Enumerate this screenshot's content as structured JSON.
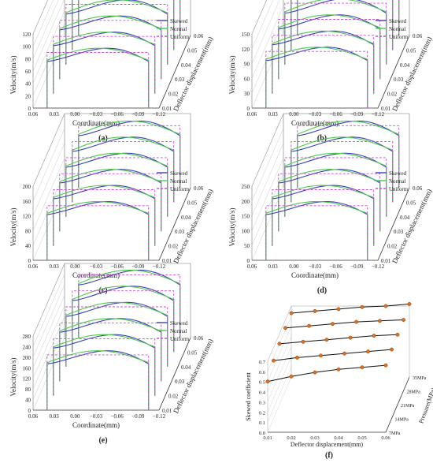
{
  "figure": {
    "panels": [
      {
        "label": "(a)",
        "chart_data": {
          "type": "line",
          "projection": "3d",
          "xlabel": "Coordinate(mm)",
          "ylabel": "Deflector displacement(mm)",
          "zlabel": "Velocity(m/s)",
          "x_ticks": [
            "0.06",
            "0.03",
            "0.00",
            "−0.03",
            "−0.06",
            "−0.09",
            "−0.12"
          ],
          "y_ticks": [
            "0.01",
            "0.02",
            "0.03",
            "0.04",
            "0.05",
            "0.06"
          ],
          "z_ticks": [
            "0",
            "20",
            "40",
            "60",
            "80",
            "100",
            "120"
          ],
          "zlim": [
            0,
            120
          ],
          "x_range": [
            0.06,
            -0.12
          ],
          "y_range": [
            0.01,
            0.06
          ],
          "slices": [
            0.01,
            0.02,
            0.03,
            0.04,
            0.05,
            0.06
          ],
          "peak_velocity": 110,
          "legend": {
            "placement": "top-right"
          },
          "series": [
            {
              "name": "Skewed",
              "color": "#3a3fb5",
              "dash": "solid"
            },
            {
              "name": "Normal",
              "color": "#4cc94c",
              "dash": "solid"
            },
            {
              "name": "Uniform",
              "color": "#c64fd6",
              "dash": "dashed"
            }
          ]
        }
      },
      {
        "label": "(b)",
        "chart_data": {
          "type": "line",
          "projection": "3d",
          "xlabel": "Coordinate(mm)",
          "ylabel": "Deflector displacement(mm)",
          "zlabel": "Velocity(m/s)",
          "x_ticks": [
            "0.06",
            "0.03",
            "0.00",
            "−0.03",
            "−0.06",
            "−0.09",
            "−0.12"
          ],
          "y_ticks": [
            "0.01",
            "0.02",
            "0.03",
            "0.04",
            "0.05",
            "0.06"
          ],
          "z_ticks": [
            "0",
            "30",
            "60",
            "90",
            "120",
            "150"
          ],
          "zlim": [
            0,
            150
          ],
          "x_range": [
            0.06,
            -0.12
          ],
          "y_range": [
            0.01,
            0.06
          ],
          "slices": [
            0.01,
            0.02,
            0.03,
            0.04,
            0.05,
            0.06
          ],
          "peak_velocity": 140,
          "legend": {
            "placement": "top-right"
          },
          "series": [
            {
              "name": "Skewed",
              "color": "#3a3fb5",
              "dash": "solid"
            },
            {
              "name": "Normal",
              "color": "#4cc94c",
              "dash": "solid"
            },
            {
              "name": "Uniform",
              "color": "#c64fd6",
              "dash": "dashed"
            }
          ]
        }
      },
      {
        "label": "(c)",
        "chart_data": {
          "type": "line",
          "projection": "3d",
          "xlabel": "Coordinate(mm)",
          "ylabel": "Deflector displacement(mm)",
          "zlabel": "Velocity(m/s)",
          "x_ticks": [
            "0.06",
            "0.03",
            "0.00",
            "−0.03",
            "−0.06",
            "−0.09",
            "−0.12"
          ],
          "y_ticks": [
            "0.01",
            "0.02",
            "0.03",
            "0.04",
            "0.05",
            "0.06"
          ],
          "z_ticks": [
            "0",
            "40",
            "80",
            "120",
            "160",
            "200"
          ],
          "zlim": [
            0,
            200
          ],
          "x_range": [
            0.06,
            -0.12
          ],
          "y_range": [
            0.01,
            0.06
          ],
          "slices": [
            0.01,
            0.02,
            0.03,
            0.04,
            0.05,
            0.06
          ],
          "peak_velocity": 180,
          "legend": {
            "placement": "top-right"
          },
          "series": [
            {
              "name": "Skewed",
              "color": "#3a3fb5",
              "dash": "solid"
            },
            {
              "name": "Normal",
              "color": "#4cc94c",
              "dash": "solid"
            },
            {
              "name": "Uniform",
              "color": "#c64fd6",
              "dash": "dashed"
            }
          ]
        }
      },
      {
        "label": "(d)",
        "chart_data": {
          "type": "line",
          "projection": "3d",
          "xlabel": "Coordinate(mm)",
          "ylabel": "Deflector displacement(mm)",
          "zlabel": "Velocity(m/s)",
          "x_ticks": [
            "0.06",
            "0.03",
            "0.00",
            "−0.03",
            "−0.06",
            "−0.09",
            "−0.12"
          ],
          "y_ticks": [
            "0.01",
            "0.02",
            "0.03",
            "0.04",
            "0.05",
            "0.06"
          ],
          "z_ticks": [
            "0",
            "50",
            "100",
            "150",
            "200",
            "250"
          ],
          "zlim": [
            0,
            250
          ],
          "x_range": [
            0.06,
            -0.12
          ],
          "y_range": [
            0.01,
            0.06
          ],
          "slices": [
            0.01,
            0.02,
            0.03,
            0.04,
            0.05,
            0.06
          ],
          "peak_velocity": 225,
          "legend": {
            "placement": "top-right"
          },
          "series": [
            {
              "name": "Skewed",
              "color": "#3a3fb5",
              "dash": "solid"
            },
            {
              "name": "Normal",
              "color": "#4cc94c",
              "dash": "solid"
            },
            {
              "name": "Uniform",
              "color": "#c64fd6",
              "dash": "dashed"
            }
          ]
        }
      },
      {
        "label": "(e)",
        "chart_data": {
          "type": "line",
          "projection": "3d",
          "xlabel": "Coordinate(mm)",
          "ylabel": "Deflector displacement(mm)",
          "zlabel": "Velocity(m/s)",
          "x_ticks": [
            "0.06",
            "0.03",
            "0.00",
            "−0.03",
            "−0.06",
            "−0.09",
            "−0.12"
          ],
          "y_ticks": [
            "0.01",
            "0.02",
            "0.03",
            "0.04",
            "0.05",
            "0.06"
          ],
          "z_ticks": [
            "0",
            "40",
            "80",
            "120",
            "160",
            "200",
            "240",
            "280"
          ],
          "zlim": [
            0,
            280
          ],
          "x_range": [
            0.06,
            -0.12
          ],
          "y_range": [
            0.01,
            0.06
          ],
          "slices": [
            0.01,
            0.02,
            0.03,
            0.04,
            0.05,
            0.06
          ],
          "peak_velocity": 255,
          "legend": {
            "placement": "top-right"
          },
          "series": [
            {
              "name": "Skewed",
              "color": "#3a3fb5",
              "dash": "solid"
            },
            {
              "name": "Normal",
              "color": "#4cc94c",
              "dash": "solid"
            },
            {
              "name": "Uniform",
              "color": "#c64fd6",
              "dash": "dashed"
            }
          ]
        }
      }
    ],
    "summary_panel": {
      "label": "(f)",
      "chart_data": {
        "type": "line",
        "projection": "3d",
        "xlabel": "Deflector displacement(mm)",
        "ylabel": "Pressure(MPa)",
        "zlabel": "Skewed coefficient",
        "x_ticks": [
          "0.01",
          "0.02",
          "0.03",
          "0.04",
          "0.05",
          "0.06"
        ],
        "y_ticks": [
          "7MPa",
          "14MPa",
          "21MPa",
          "28MPa",
          "35MPa"
        ],
        "z_ticks": [
          "0.0",
          "0.1",
          "0.2",
          "0.3",
          "0.4",
          "0.5",
          "0.6",
          "0.7"
        ],
        "zlim": [
          0,
          0.7
        ],
        "line_color": "#111111",
        "marker_color": "#e07020",
        "x": [
          0.01,
          0.02,
          0.03,
          0.04,
          0.05,
          0.06
        ],
        "series": [
          {
            "pressure": "7MPa",
            "values": [
              0.5,
              0.55,
              0.59,
              0.62,
              0.64,
              0.66
            ]
          },
          {
            "pressure": "14MPa",
            "values": [
              0.57,
              0.6,
              0.62,
              0.64,
              0.66,
              0.68
            ]
          },
          {
            "pressure": "21MPa",
            "values": [
              0.6,
              0.62,
              0.64,
              0.66,
              0.68,
              0.69
            ]
          },
          {
            "pressure": "28MPa",
            "values": [
              0.62,
              0.64,
              0.66,
              0.68,
              0.69,
              0.7
            ]
          },
          {
            "pressure": "35MPa",
            "values": [
              0.63,
              0.65,
              0.67,
              0.69,
              0.7,
              0.72
            ]
          }
        ]
      }
    }
  }
}
